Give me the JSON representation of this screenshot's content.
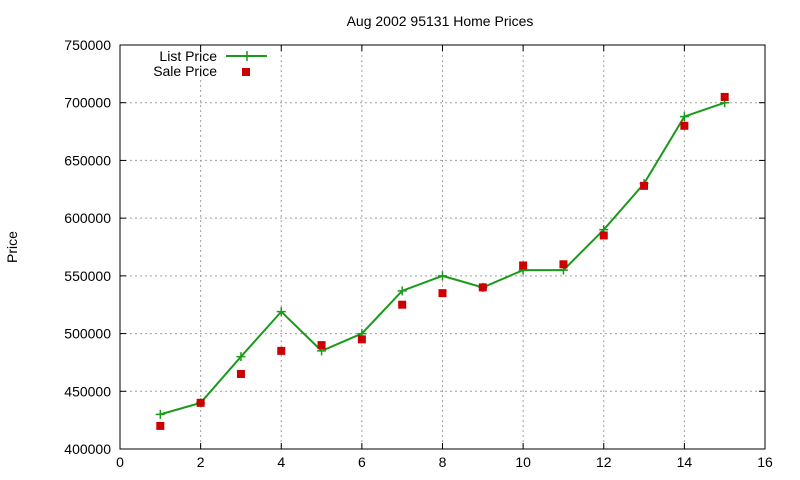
{
  "chart_data": {
    "type": "line",
    "title": "Aug 2002 95131 Home Prices",
    "xlabel": "",
    "ylabel": "Price",
    "xlim": [
      0,
      16
    ],
    "ylim": [
      400000,
      750000
    ],
    "xticks": [
      0,
      2,
      4,
      6,
      8,
      10,
      12,
      14,
      16
    ],
    "yticks": [
      400000,
      450000,
      500000,
      550000,
      600000,
      650000,
      700000,
      750000
    ],
    "grid": true,
    "legend": "top-left",
    "series": [
      {
        "name": "List Price",
        "style": "line-plus",
        "color": "#1a9a1a",
        "x": [
          1,
          2,
          3,
          4,
          5,
          6,
          7,
          8,
          9,
          10,
          11,
          12,
          13,
          14,
          15
        ],
        "y": [
          430000,
          440000,
          480000,
          519000,
          485000,
          500000,
          537000,
          550000,
          540000,
          555000,
          555000,
          590000,
          630000,
          688000,
          700000
        ]
      },
      {
        "name": "Sale Price",
        "style": "square",
        "color": "#cc0000",
        "x": [
          1,
          2,
          3,
          4,
          5,
          6,
          7,
          8,
          9,
          10,
          11,
          12,
          13,
          14,
          15
        ],
        "y": [
          420000,
          440000,
          465000,
          485000,
          490000,
          495000,
          525000,
          535000,
          540000,
          559000,
          560000,
          585000,
          628000,
          680000,
          705000
        ]
      }
    ]
  }
}
